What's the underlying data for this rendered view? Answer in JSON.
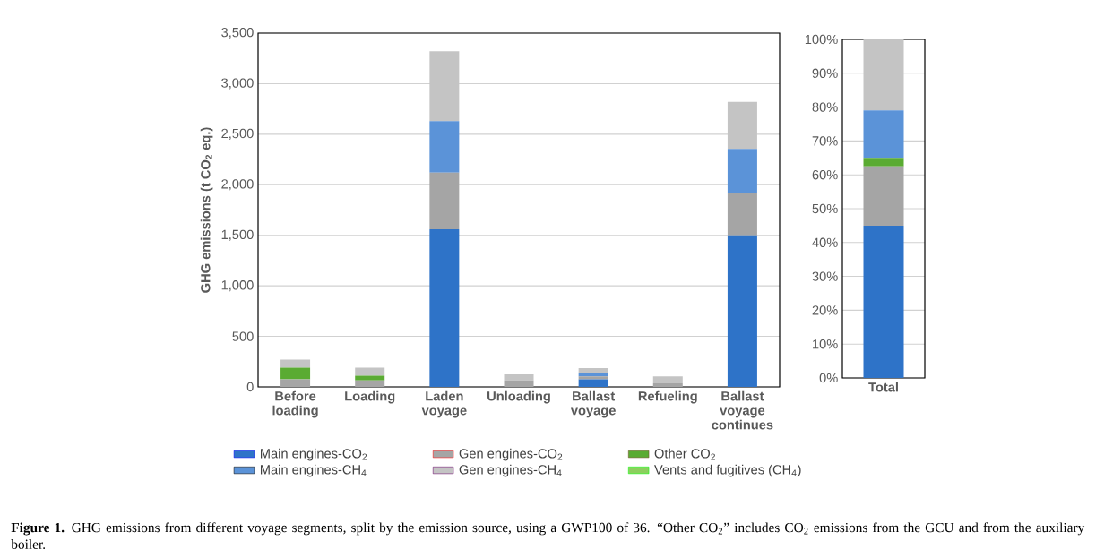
{
  "chart_data": [
    {
      "type": "bar",
      "stacked": true,
      "ylabel": "GHG emissions (t CO$_{2}$ eq.)",
      "categories": [
        "Before loading",
        "Loading",
        "Laden voyage",
        "Unloading",
        "Ballast voyage",
        "Refueling",
        "Ballast voyage continues"
      ],
      "series": [
        {
          "name": "Main engines-CO$_{2}$",
          "color": "#2e73c8",
          "values": [
            0,
            0,
            1560,
            0,
            75,
            0,
            1500
          ]
        },
        {
          "name": "Gen engines-CO$_{2}$",
          "color": "#a5a5a5",
          "values": [
            75,
            65,
            560,
            65,
            30,
            35,
            420
          ]
        },
        {
          "name": "Other CO$_{2}$",
          "color": "#5aab32",
          "values": [
            115,
            45,
            0,
            0,
            0,
            0,
            0
          ]
        },
        {
          "name": "Main engines-CH$_{4}$",
          "color": "#5b93d8",
          "values": [
            0,
            0,
            510,
            0,
            35,
            0,
            435
          ]
        },
        {
          "name": "Gen engines-CH$_{4}$",
          "color": "#c4c4c4",
          "values": [
            80,
            80,
            690,
            60,
            45,
            70,
            465
          ]
        },
        {
          "name": "Vents and fugitives (CH$_{4}$)",
          "color": "#8ccf5e",
          "values": [
            0,
            0,
            0,
            0,
            0,
            0,
            0
          ]
        }
      ],
      "ylim": [
        0,
        3500
      ],
      "yticks": [
        0,
        500,
        {
          "value": 1000,
          "label": "1,000"
        },
        {
          "value": 1500,
          "label": "1,500"
        },
        {
          "value": 2000,
          "label": "2,000"
        },
        {
          "value": 2500,
          "label": "2,500"
        },
        {
          "value": 3000,
          "label": "3,000"
        },
        {
          "value": 3500,
          "label": "3,500"
        }
      ],
      "grid": "y",
      "legend": "bottom",
      "annotations": [
        "**Figure 1.** GHG emissions from different voyage segments, split by the emission source, using a GWP100 of 36. “Other CO$_{2}$” includes CO$_{2}$ emissions from the GCU and from the auxiliary boiler."
      ]
    },
    {
      "type": "bar",
      "stacked": true,
      "categories": [
        "Total"
      ],
      "series": [
        {
          "color": "#2e73c8",
          "values": [
            45
          ]
        },
        {
          "color": "#a5a5a5",
          "values": [
            17.5
          ]
        },
        {
          "color": "#5aab32",
          "values": [
            2.5
          ]
        },
        {
          "color": "#5b93d8",
          "values": [
            14
          ]
        },
        {
          "color": "#c4c4c4",
          "values": [
            21
          ]
        },
        {
          "color": "#8ccf5e",
          "values": [
            0
          ]
        }
      ],
      "ylim": [
        0,
        100
      ],
      "yticks": [
        {
          "value": 0,
          "label": "0%"
        },
        {
          "value": 10,
          "label": "10%"
        },
        {
          "value": 20,
          "label": "20%"
        },
        {
          "value": 30,
          "label": "30%"
        },
        {
          "value": 40,
          "label": "40%"
        },
        {
          "value": 50,
          "label": "50%"
        },
        {
          "value": 60,
          "label": "60%"
        },
        {
          "value": 70,
          "label": "70%"
        },
        {
          "value": 80,
          "label": "80%"
        },
        {
          "value": 90,
          "label": "90%"
        },
        {
          "value": 100,
          "label": "100%"
        }
      ],
      "grid": "y"
    }
  ]
}
